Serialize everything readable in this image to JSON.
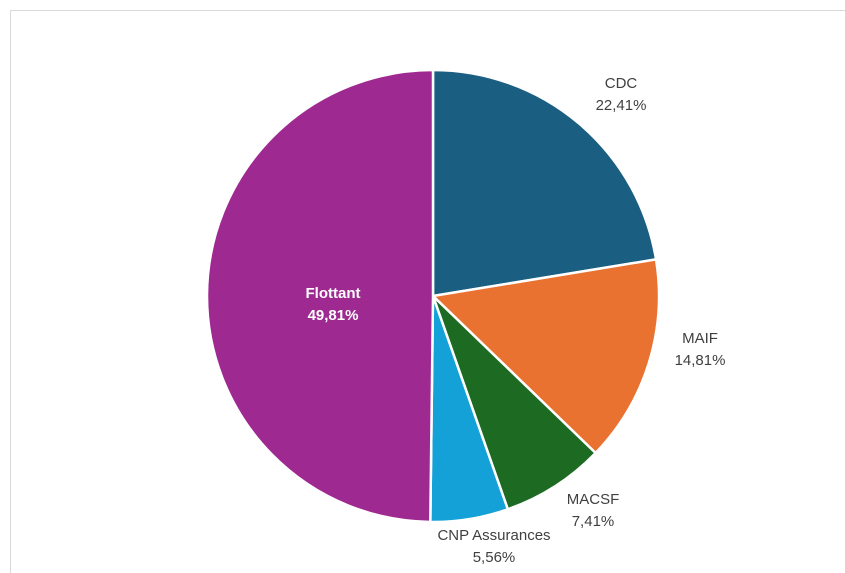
{
  "chart_data": {
    "type": "pie",
    "title": "",
    "start_angle_deg": 0,
    "direction": "clockwise",
    "slices": [
      {
        "name": "CDC",
        "value": 22.41,
        "label_value": "22,41%",
        "color": "#1a5f82",
        "label_position": "outside"
      },
      {
        "name": "MAIF",
        "value": 14.81,
        "label_value": "14,81%",
        "color": "#e97231",
        "label_position": "outside"
      },
      {
        "name": "MACSF",
        "value": 7.41,
        "label_value": "7,41%",
        "color": "#1d6b23",
        "label_position": "outside"
      },
      {
        "name": "CNP Assurances",
        "value": 5.56,
        "label_value": "5,56%",
        "color": "#14a1d7",
        "label_position": "outside"
      },
      {
        "name": "Flottant",
        "value": 49.81,
        "label_value": "49,81%",
        "color": "#9e2a91",
        "label_position": "inside"
      }
    ],
    "slice_border_color": "#ffffff",
    "legend": "none"
  }
}
